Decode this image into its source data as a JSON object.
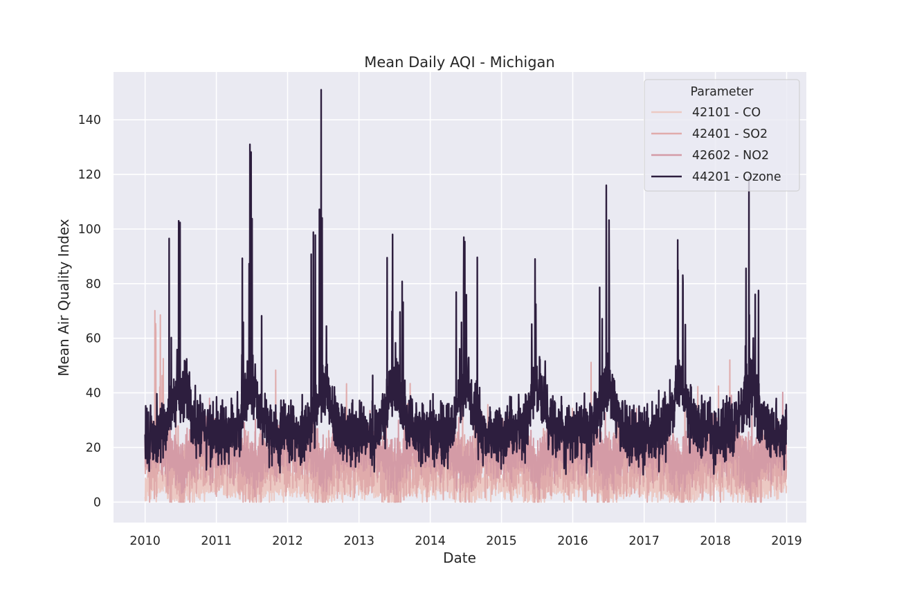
{
  "chart_data": {
    "type": "line",
    "title": "Mean Daily AQI - Michigan",
    "xlabel": "Date",
    "ylabel": "Mean Air Quality Index",
    "x_ticks": [
      "2010",
      "2011",
      "2012",
      "2013",
      "2014",
      "2015",
      "2016",
      "2017",
      "2018",
      "2019"
    ],
    "y_ticks": [
      "0",
      "20",
      "40",
      "60",
      "80",
      "100",
      "120",
      "140"
    ],
    "xlim": [
      "2009-07-23",
      "2019-04-12"
    ],
    "ylim": [
      -7.5,
      157.5
    ],
    "x_range": [
      "2010-01-01",
      "2018-12-31"
    ],
    "grid": true,
    "legend": {
      "title": "Parameter",
      "placement": "top-right"
    },
    "series": [
      {
        "name": "42101 - CO",
        "color": "#ecc9c3",
        "summary": "daily mean AQI mostly between 0 and 15, occasional values up to ~25",
        "seasonal": {
          "winter": 7,
          "summer": 4,
          "noise": 4,
          "peak": 25
        }
      },
      {
        "name": "42401 - SO2",
        "color": "#e0abab",
        "summary": "daily mean AQI mostly between 0 and 35, peaks near 72 in early 2010",
        "seasonal": {
          "winter": 16,
          "summer": 10,
          "noise": 9,
          "peak": 72
        }
      },
      {
        "name": "42602 - NO2",
        "color": "#d49ba6",
        "summary": "daily mean AQI mostly between 5 and 30, peaks near 45",
        "seasonal": {
          "winter": 20,
          "summer": 13,
          "noise": 7,
          "peak": 45
        }
      },
      {
        "name": "44201 - Ozone",
        "color": "#2d1e3e",
        "summary": "strong annual cycle: ~25 in winter, ~40 baseline in summer with spikes",
        "seasonal": {
          "winter": 25,
          "summer": 42,
          "noise": 8,
          "peak": 151
        },
        "annual_peaks": [
          {
            "year": 2010,
            "max": 103
          },
          {
            "year": 2011,
            "max": 131
          },
          {
            "year": 2012,
            "max": 151
          },
          {
            "year": 2013,
            "max": 98
          },
          {
            "year": 2014,
            "max": 97
          },
          {
            "year": 2015,
            "max": 89
          },
          {
            "year": 2016,
            "max": 116
          },
          {
            "year": 2017,
            "max": 96
          },
          {
            "year": 2018,
            "max": 119
          }
        ]
      }
    ]
  },
  "style": {
    "background": "#ffffff",
    "plot_background": "#eaeaf2",
    "grid_color": "#ffffff",
    "text_color": "#262626"
  }
}
